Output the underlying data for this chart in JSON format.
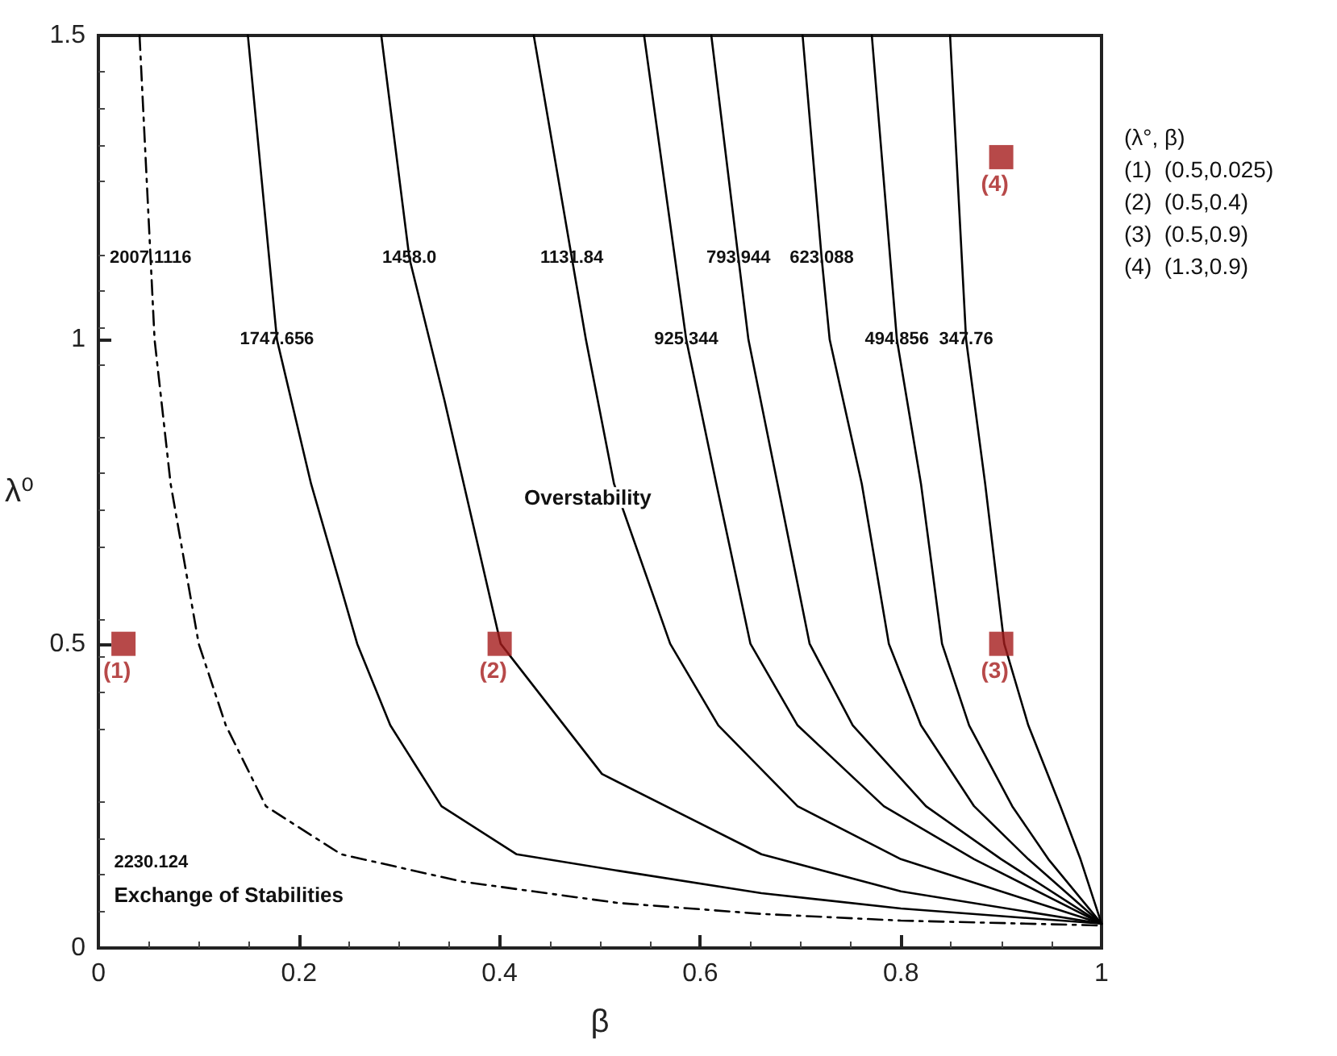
{
  "chart_data": {
    "type": "line",
    "xlabel": "β",
    "ylabel": "λ⁰",
    "xlim": [
      0,
      1
    ],
    "ylim": [
      0,
      1.5
    ],
    "xticks": [
      0,
      0.2,
      0.4,
      0.6,
      0.8,
      1
    ],
    "yticks": [
      0,
      0.5,
      1,
      1.5
    ],
    "series": [
      {
        "name": "2007.1116",
        "color": "#000000",
        "line_style": "dashed",
        "x": [
          0.041,
          0.052,
          0.056,
          0.072,
          0.1,
          0.127,
          0.167,
          0.242,
          0.363,
          0.518,
          0.661,
          0.8,
          1
        ],
        "values": [
          1.5,
          1.134,
          1.0,
          0.763,
          0.5,
          0.366,
          0.233,
          0.154,
          0.109,
          0.074,
          0.056,
          0.045,
          0.037
        ]
      },
      {
        "name": "1747.656",
        "color": "#000000",
        "line_style": "solid",
        "x": [
          0.149,
          0.178,
          0.212,
          0.258,
          0.291,
          0.342,
          0.417,
          0.518,
          0.661,
          0.8,
          1
        ],
        "values": [
          1.5,
          1.0,
          0.763,
          0.5,
          0.366,
          0.233,
          0.154,
          0.127,
          0.09,
          0.065,
          0.04
        ]
      },
      {
        "name": "1458.0",
        "color": "#000000",
        "line_style": "solid",
        "x": [
          0.282,
          0.31,
          0.345,
          0.401,
          0.502,
          0.661,
          0.8,
          1
        ],
        "values": [
          1.5,
          1.134,
          0.9,
          0.5,
          0.286,
          0.154,
          0.093,
          0.04
        ]
      },
      {
        "name": "1131.84",
        "color": "#000000",
        "line_style": "solid",
        "x": [
          0.434,
          0.472,
          0.486,
          0.514,
          0.57,
          0.618,
          0.697,
          0.8,
          1
        ],
        "values": [
          1.5,
          1.134,
          1.0,
          0.763,
          0.5,
          0.366,
          0.233,
          0.146,
          0.04
        ]
      },
      {
        "name": "925.344",
        "color": "#000000",
        "line_style": "solid",
        "x": [
          0.544,
          0.586,
          0.616,
          0.65,
          0.697,
          0.783,
          0.873,
          1
        ],
        "values": [
          1.5,
          1.0,
          0.763,
          0.5,
          0.366,
          0.233,
          0.146,
          0.04
        ]
      },
      {
        "name": "793.944",
        "color": "#000000",
        "line_style": "solid",
        "x": [
          0.611,
          0.638,
          0.648,
          0.677,
          0.709,
          0.752,
          0.825,
          0.9,
          1
        ],
        "values": [
          1.5,
          1.134,
          1.0,
          0.763,
          0.5,
          0.366,
          0.233,
          0.146,
          0.04
        ]
      },
      {
        "name": "623.088",
        "color": "#000000",
        "line_style": "solid",
        "x": [
          0.702,
          0.721,
          0.729,
          0.761,
          0.788,
          0.82,
          0.873,
          0.927,
          1
        ],
        "values": [
          1.5,
          1.134,
          1.0,
          0.763,
          0.5,
          0.366,
          0.233,
          0.146,
          0.04
        ]
      },
      {
        "name": "494.856",
        "color": "#000000",
        "line_style": "solid",
        "x": [
          0.771,
          0.796,
          0.82,
          0.841,
          0.868,
          0.911,
          0.947,
          1
        ],
        "values": [
          1.5,
          1.0,
          0.763,
          0.5,
          0.366,
          0.233,
          0.146,
          0.04
        ]
      },
      {
        "name": "347.76",
        "color": "#000000",
        "line_style": "solid",
        "x": [
          0.849,
          0.865,
          0.884,
          0.903,
          0.927,
          0.959,
          0.979,
          1
        ],
        "values": [
          1.5,
          1.0,
          0.763,
          0.5,
          0.366,
          0.233,
          0.146,
          0.04
        ]
      },
      {
        "type": "scatter",
        "color": "#a51c1c",
        "marker": "square",
        "x": [
          0.025,
          0.4,
          0.9,
          0.9
        ],
        "values": [
          0.5,
          0.5,
          0.5,
          1.3
        ]
      }
    ],
    "annotations": [
      {
        "text": "(1)",
        "x": 0.025,
        "y": 0.5
      },
      {
        "text": "(2)",
        "x": 0.4,
        "y": 0.5
      },
      {
        "text": "(3)",
        "x": 0.9,
        "y": 0.5
      },
      {
        "text": "(4)",
        "x": 0.9,
        "y": 1.3
      },
      "Overstability",
      "2230.124",
      "Exchange of Stabilities",
      "(λ°, β)",
      "(1)  (0.5,0.025)",
      "(2)  (0.5,0.4)",
      "(3)  (0.5,0.9)",
      "(4)  (1.3,0.9)"
    ]
  }
}
